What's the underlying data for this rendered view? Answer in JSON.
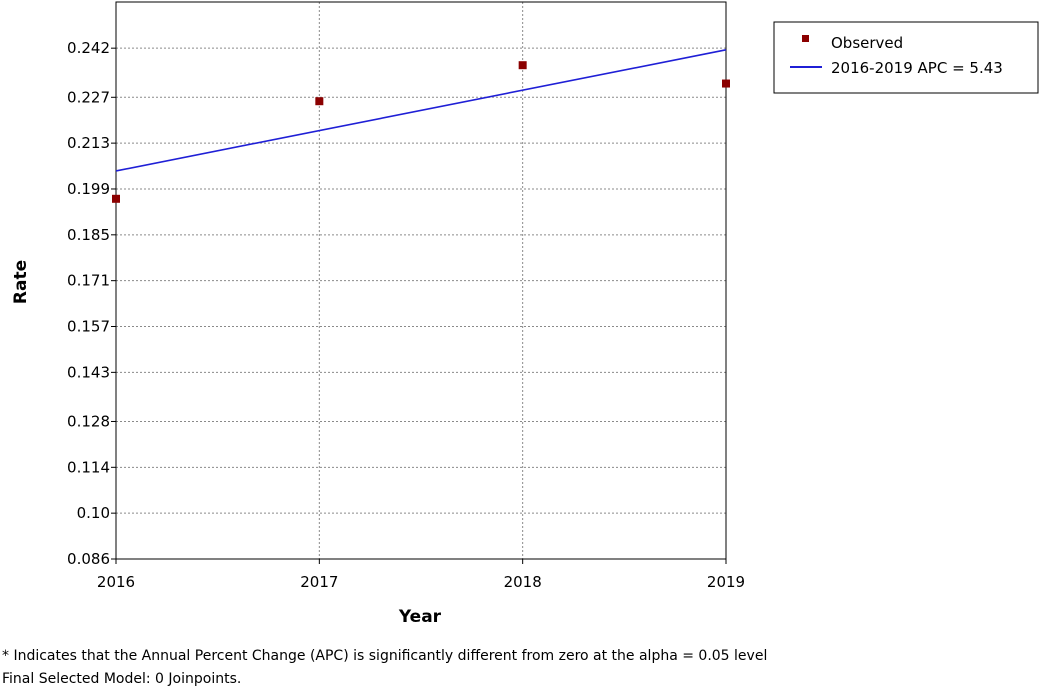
{
  "chart_data": {
    "type": "scatter",
    "title": "",
    "xlabel": "Year",
    "ylabel": "Rate",
    "x_ticks": [
      "2016",
      "2017",
      "2018",
      "2019"
    ],
    "y_ticks": [
      "0.086",
      "0.10",
      "0.114",
      "0.128",
      "0.143",
      "0.157",
      "0.171",
      "0.185",
      "0.199",
      "0.213",
      "0.227",
      "0.242"
    ],
    "xlim": [
      2016,
      2019
    ],
    "ylim": [
      0.086,
      0.2561
    ],
    "grid": true,
    "legend_position": "top-right, outside plot",
    "series": [
      {
        "name": "Observed",
        "kind": "points",
        "color": "#8b0000",
        "x": [
          2016,
          2017,
          2018,
          2019
        ],
        "y": [
          0.196,
          0.2258,
          0.2368,
          0.2312
        ]
      },
      {
        "name": "2016-2019 APC  = 5.43",
        "kind": "line",
        "color": "#1f1fd6",
        "x": [
          2016,
          2019
        ],
        "y": [
          0.2045,
          0.2415
        ]
      }
    ]
  },
  "footnotes": {
    "line1": "* Indicates that the Annual Percent Change (APC) is significantly different from zero at the alpha = 0.05 level",
    "line2": "Final Selected Model: 0 Joinpoints."
  }
}
